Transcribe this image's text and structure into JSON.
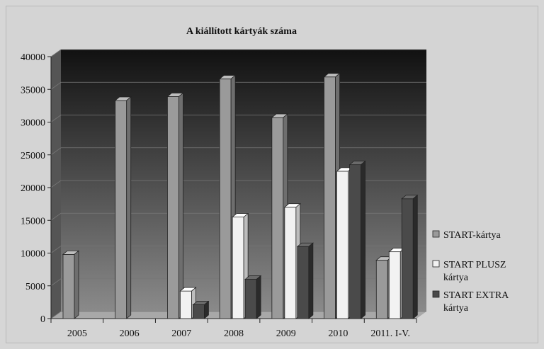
{
  "chart_data": {
    "type": "bar",
    "title": "A  kiállított kártyák száma",
    "xlabel": "",
    "ylabel": "",
    "categories": [
      "2005",
      "2006",
      "2007",
      "2008",
      "2009",
      "2010",
      "2011. I-V."
    ],
    "series": [
      {
        "name": "START-kártya",
        "values": [
          9800,
          33300,
          33900,
          36600,
          30700,
          36900,
          8900
        ]
      },
      {
        "name": "START PLUSZ kártya",
        "values": [
          0,
          0,
          4200,
          15500,
          17000,
          22500,
          10200
        ]
      },
      {
        "name": "START EXTRA kártya",
        "values": [
          0,
          0,
          2100,
          6000,
          11000,
          23500,
          18300
        ]
      }
    ],
    "ylim": [
      0,
      40000
    ],
    "yticks": [
      0,
      5000,
      10000,
      15000,
      20000,
      25000,
      30000,
      35000,
      40000
    ],
    "grid": true,
    "legend_position": "right",
    "colors": {
      "series": [
        "#9a9a9a",
        "#f2f2f2",
        "#4a4a4a"
      ],
      "series_top": [
        "#bdbdbd",
        "#ffffff",
        "#6a6a6a"
      ],
      "series_side": [
        "#6e6e6e",
        "#bdbdbd",
        "#2a2a2a"
      ],
      "wall_top": "#111111",
      "wall_bottom": "#8a8a8a",
      "chart_background": "#d4d4d4"
    }
  }
}
